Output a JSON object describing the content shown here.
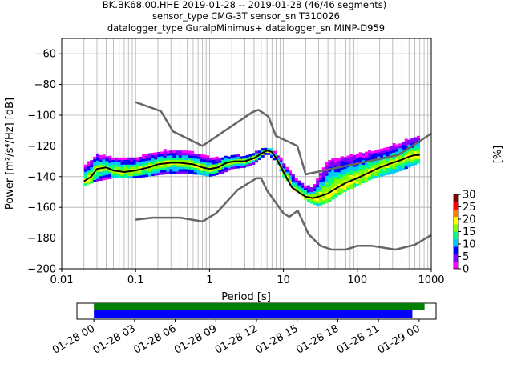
{
  "chart_data": {
    "type": "heatmap",
    "title_lines": [
      "BK.BK68.00.HHE   2019-01-28 -- 2019-01-28  (46/46 segments)",
      "sensor_type CMG-3T sensor_sn T310026",
      "datalogger_type GuralpMinimus+ datalogger_sn MINP-D959"
    ],
    "xlabel": "Period [s]",
    "ylabel": "Power [m²/s⁴/Hz] [dB]",
    "x_scale": "log",
    "xlim": [
      0.01,
      1000
    ],
    "ylim": [
      -200,
      -50
    ],
    "x_ticks": [
      0.01,
      0.1,
      1,
      10,
      100,
      1000
    ],
    "x_tick_labels": [
      "0.01",
      "0.1",
      "1",
      "10",
      "100",
      "1000"
    ],
    "y_ticks": [
      -200,
      -180,
      -160,
      -140,
      -120,
      -100,
      -80,
      -60
    ],
    "y_tick_labels": [
      "−200",
      "−180",
      "−160",
      "−140",
      "−120",
      "−100",
      "−80",
      "−60"
    ],
    "grid": true,
    "colorbar": {
      "label": "[%]",
      "range": [
        0,
        30
      ],
      "ticks": [
        0,
        5,
        10,
        15,
        20,
        25,
        30
      ],
      "tick_labels": [
        "0",
        "5",
        "10",
        "15",
        "20",
        "25",
        "30"
      ],
      "colors": [
        "#ff00ff",
        "#8000ff",
        "#0000ff",
        "#00c8ff",
        "#00ff80",
        "#80ff00",
        "#ffff00",
        "#ff8000",
        "#ff0000",
        "#800000"
      ]
    },
    "mean_psd": {
      "name": "mean",
      "x": [
        0.02,
        0.025,
        0.03,
        0.04,
        0.05,
        0.07,
        0.1,
        0.15,
        0.2,
        0.3,
        0.4,
        0.6,
        0.8,
        1.0,
        1.3,
        1.7,
        2.2,
        3.0,
        4.0,
        5.0,
        6.0,
        7.0,
        8.0,
        10,
        13,
        17,
        20,
        25,
        30,
        40,
        50,
        70,
        100,
        150,
        200,
        300,
        400,
        500,
        600,
        700
      ],
      "y": [
        -143,
        -140,
        -135,
        -134,
        -136,
        -137,
        -136,
        -134,
        -132,
        -131,
        -131,
        -132,
        -134,
        -135,
        -134,
        -131,
        -130,
        -130,
        -128,
        -125,
        -123,
        -124,
        -128,
        -137,
        -147,
        -151,
        -153,
        -154,
        -153,
        -151,
        -148,
        -144,
        -141,
        -137,
        -134,
        -131,
        -129,
        -127,
        -126,
        -126
      ]
    },
    "nhnm": {
      "name": "NHNM",
      "x": [
        0.1,
        0.22,
        0.32,
        0.8,
        3.8,
        4.6,
        6.3,
        7.9,
        15.4,
        20,
        354,
        1000
      ],
      "y": [
        -91.5,
        -97.4,
        -110.5,
        -120.0,
        -98.0,
        -96.5,
        -101.0,
        -113.5,
        -120.0,
        -138.5,
        -126.0,
        -112.0
      ]
    },
    "nlnm": {
      "name": "NLNM",
      "x": [
        0.1,
        0.17,
        0.4,
        0.8,
        1.24,
        2.4,
        4.3,
        5.0,
        6.0,
        10,
        12,
        15.6,
        21.9,
        31.6,
        45,
        70,
        101,
        154,
        328,
        600,
        1000
      ],
      "y": [
        -168.0,
        -166.7,
        -166.7,
        -169.2,
        -163.7,
        -148.6,
        -141.1,
        -141.1,
        -149.0,
        -163.8,
        -166.2,
        -162.1,
        -177.5,
        -185.0,
        -187.5,
        -187.5,
        -185.0,
        -185.0,
        -187.5,
        -184.4,
        -178.0
      ]
    },
    "pdf_band": {
      "x": [
        0.02,
        0.03,
        0.05,
        0.1,
        0.2,
        0.3,
        0.5,
        0.8,
        1.0,
        1.5,
        2.0,
        3.0,
        4.0,
        6.0,
        8.0,
        10,
        15,
        20,
        25,
        30,
        40,
        60,
        100,
        150,
        200,
        300,
        400,
        500,
        700
      ],
      "y_low": [
        -146,
        -143,
        -141,
        -141,
        -139,
        -138,
        -138,
        -139,
        -140,
        -138,
        -135,
        -134,
        -132,
        -125,
        -130,
        -140,
        -150,
        -155,
        -158,
        -159,
        -157,
        -151,
        -146,
        -142,
        -140,
        -138,
        -136,
        -134,
        -131
      ],
      "y_high": [
        -134,
        -126,
        -128,
        -128,
        -124,
        -123,
        -124,
        -126,
        -128,
        -128,
        -127,
        -127,
        -125,
        -121,
        -125,
        -131,
        -141,
        -146,
        -148,
        -140,
        -130,
        -128,
        -126,
        -124,
        -123,
        -120,
        -118,
        -116,
        -114
      ]
    }
  },
  "timeline": {
    "tick_labels": [
      "01-28 00",
      "01-28 03",
      "01-28 06",
      "01-28 09",
      "01-28 12",
      "01-28 15",
      "01-28 18",
      "01-28 21",
      "01-29 00"
    ],
    "tick_hours": [
      0,
      3,
      6,
      9,
      12,
      15,
      18,
      21,
      24
    ],
    "range_hours": [
      -1.25,
      25.25
    ],
    "bars": [
      {
        "name": "data-coverage",
        "start_hour": 0,
        "end_hour": 24.4,
        "color": "#008000"
      },
      {
        "name": "used-segments",
        "start_hour": 0,
        "end_hour": 23.5,
        "color": "#0000ff"
      }
    ]
  }
}
